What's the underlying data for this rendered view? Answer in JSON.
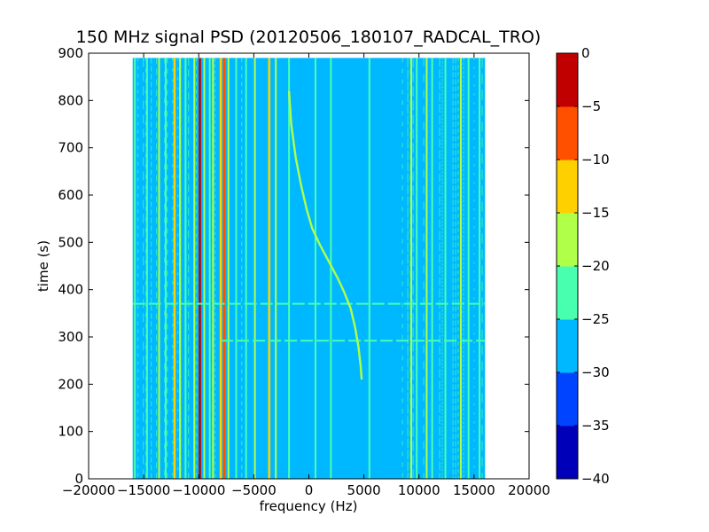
{
  "chart_data": {
    "type": "heatmap",
    "title": "150 MHz signal PSD (20120506_180107_RADCAL_TRO)",
    "xlabel": "frequency (Hz)",
    "ylabel": "time (s)",
    "xlim": [
      -20000,
      20000
    ],
    "ylim": [
      0,
      900
    ],
    "x_ticks": [
      -20000,
      -15000,
      -10000,
      -5000,
      0,
      5000,
      10000,
      15000,
      20000
    ],
    "x_tick_labels": [
      "−20000",
      "−15000",
      "−10000",
      "−5000",
      "0",
      "5000",
      "10000",
      "15000",
      "20000"
    ],
    "y_ticks": [
      0,
      100,
      200,
      300,
      400,
      500,
      600,
      700,
      800,
      900
    ],
    "y_tick_labels": [
      "0",
      "100",
      "200",
      "300",
      "400",
      "500",
      "600",
      "700",
      "800",
      "900"
    ],
    "data_extent": {
      "x": [
        -16000,
        16000
      ],
      "y": [
        0,
        890
      ]
    },
    "background_level": -27.5,
    "colorbar": {
      "levels": [
        -40,
        -35,
        -30,
        -25,
        -20,
        -15,
        -10,
        -5,
        0
      ],
      "tick_labels": [
        "−40",
        "−35",
        "−30",
        "−25",
        "−20",
        "−15",
        "−10",
        "−5",
        "0"
      ],
      "colors": [
        "#0000b8",
        "#0044ff",
        "#00b8ff",
        "#48ffb0",
        "#b0ff48",
        "#ffd000",
        "#ff5000",
        "#c00000"
      ]
    },
    "vertical_lines": [
      {
        "x": -15800,
        "level": -22.5
      },
      {
        "x": -14700,
        "level": -22.5
      },
      {
        "x": -13600,
        "level": -17.5
      },
      {
        "x": -13000,
        "level": -22.5
      },
      {
        "x": -12200,
        "level": -12.5
      },
      {
        "x": -11700,
        "level": -17.5
      },
      {
        "x": -11200,
        "level": -22.5
      },
      {
        "x": -10400,
        "level": -17.5
      },
      {
        "x": -9900,
        "level": -2.5
      },
      {
        "x": -9500,
        "level": -17.5
      },
      {
        "x": -9000,
        "level": -22.5
      },
      {
        "x": -8700,
        "level": -17.5
      },
      {
        "x": -8000,
        "level": -12.5
      },
      {
        "x": -7700,
        "level": -7.5
      },
      {
        "x": -7300,
        "level": -17.5
      },
      {
        "x": -6600,
        "level": -22.5
      },
      {
        "x": -5700,
        "level": -22.5
      },
      {
        "x": -4900,
        "level": -17.5
      },
      {
        "x": -3600,
        "level": -12.5
      },
      {
        "x": -3000,
        "level": -17.5
      },
      {
        "x": -1800,
        "level": -22.5
      },
      {
        "x": 600,
        "level": -22.5
      },
      {
        "x": 2000,
        "level": -22.5
      },
      {
        "x": 5500,
        "level": -22.5
      },
      {
        "x": 9300,
        "level": -17.5
      },
      {
        "x": 9800,
        "level": -22.5
      },
      {
        "x": 10700,
        "level": -17.5
      },
      {
        "x": 11200,
        "level": -22.5
      },
      {
        "x": 12400,
        "level": -22.5
      },
      {
        "x": 13800,
        "level": -17.5
      },
      {
        "x": 14500,
        "level": -22.5
      },
      {
        "x": 15500,
        "level": -22.5
      }
    ],
    "noise_bands": [
      {
        "x0": -16000,
        "x1": -6000,
        "level": -22.5
      },
      {
        "x0": 8500,
        "x1": 16000,
        "level": -22.5
      }
    ],
    "horizontal_lines": [
      {
        "y": 292,
        "x0": -8000,
        "x1": 16000,
        "level": -22.5
      },
      {
        "y": 370,
        "x0": -16000,
        "x1": 16000,
        "level": -22.5
      }
    ],
    "chirp": {
      "level": -17.5,
      "points": [
        [
          -1800,
          820
        ],
        [
          -1600,
          750
        ],
        [
          -1200,
          680
        ],
        [
          -700,
          620
        ],
        [
          -200,
          570
        ],
        [
          300,
          530
        ],
        [
          1000,
          495
        ],
        [
          1800,
          460
        ],
        [
          2600,
          425
        ],
        [
          3200,
          395
        ],
        [
          3800,
          360
        ],
        [
          4200,
          320
        ],
        [
          4500,
          280
        ],
        [
          4700,
          240
        ],
        [
          4800,
          210
        ]
      ]
    }
  }
}
